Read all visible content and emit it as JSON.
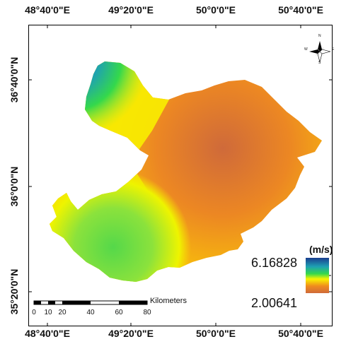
{
  "axes": {
    "top_ticks": [
      "48°40'0\"E",
      "49°20'0\"E",
      "50°0'0\"E",
      "50°40'0\"E"
    ],
    "bottom_ticks": [
      "48°40'0\"E",
      "49°20'0\"E",
      "50°0'0\"E",
      "50°40'0\"E"
    ],
    "left_ticks": [
      "36°40'0\"N",
      "36°0'0\"N",
      "35°20'0\"N"
    ]
  },
  "legend": {
    "title": "(m/s)",
    "max_label": "6.16828",
    "min_label": "2.00641",
    "colors": [
      "#1a3d8f",
      "#1ea1b3",
      "#34d84c",
      "#f8f500",
      "#f08b1e",
      "#cf6a3a"
    ]
  },
  "scale_bar": {
    "unit": "Kilometers",
    "labels": [
      "0",
      "10",
      "20",
      "40",
      "60",
      "80"
    ]
  },
  "north_arrow": {
    "icon": "compass-rose-icon",
    "letters": {
      "n": "N",
      "s": "S",
      "e": "E",
      "w": "W"
    }
  }
}
